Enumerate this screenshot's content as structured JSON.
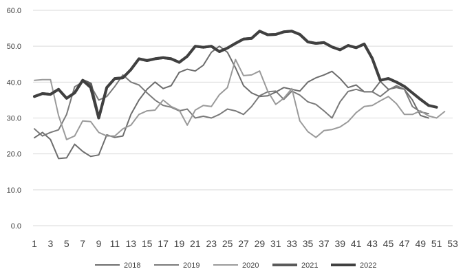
{
  "chart_data": {
    "type": "line",
    "title": "",
    "xlabel": "",
    "ylabel": "",
    "ylim": [
      0,
      60
    ],
    "y_ticks": [
      "0.0",
      "10.0",
      "20.0",
      "30.0",
      "40.0",
      "50.0",
      "60.0"
    ],
    "x_ticks": [
      "1",
      "3",
      "5",
      "7",
      "9",
      "11",
      "13",
      "15",
      "17",
      "19",
      "21",
      "23",
      "25",
      "27",
      "29",
      "31",
      "33",
      "35",
      "37",
      "39",
      "41",
      "43",
      "45",
      "47",
      "49",
      "51",
      "53"
    ],
    "xlim": [
      1,
      53
    ],
    "grid": "horizontal",
    "legend": "bottom",
    "series": [
      {
        "name": "2018",
        "color": "#6d6d6d",
        "x": [
          1,
          2,
          3,
          4,
          5,
          6,
          7,
          8,
          9,
          10,
          11,
          12,
          13,
          14,
          15,
          16,
          17,
          18,
          19,
          20,
          21,
          22,
          23,
          24,
          25,
          26,
          27,
          28,
          29,
          30,
          31,
          32,
          33,
          34,
          35,
          36,
          37,
          38,
          39,
          40,
          41,
          42,
          43,
          44,
          45,
          46,
          47,
          48,
          49,
          50
        ],
        "values": [
          24.5,
          26,
          24,
          18.7,
          18.9,
          22.7,
          20.7,
          19.3,
          19.7,
          25.3,
          24.6,
          25,
          31,
          35,
          38,
          40,
          38.2,
          39,
          42.7,
          43.6,
          43.1,
          44.7,
          48.3,
          50,
          48.3,
          44,
          39,
          37,
          36,
          36.2,
          37.2,
          38.5,
          38,
          37.5,
          40,
          41.2,
          42,
          43,
          41,
          38.5,
          39.2,
          37.3,
          37.3,
          40.2,
          38,
          38.5,
          38,
          35,
          30.7,
          30
        ]
      },
      {
        "name": "2019",
        "color": "#7a7a7a",
        "x": [
          1,
          2,
          3,
          4,
          5,
          6,
          7,
          8,
          9,
          10,
          11,
          12,
          13,
          14,
          15,
          16,
          17,
          18,
          19,
          20,
          21,
          22,
          23,
          24,
          25,
          26,
          27,
          28,
          29,
          30,
          31,
          32,
          33,
          34,
          35,
          36,
          37,
          38,
          39,
          40,
          41,
          42,
          43,
          44,
          45,
          46,
          47,
          48,
          49,
          50
        ],
        "values": [
          27,
          25,
          26,
          26.7,
          31,
          38.7,
          40,
          39,
          35,
          36,
          38.8,
          42,
          40,
          39.2,
          37,
          35,
          33.5,
          33,
          32,
          32.5,
          30,
          30.5,
          30,
          31,
          32.5,
          32,
          31,
          33.2,
          36.2,
          37.3,
          37.5,
          35.2,
          37.5,
          36.4,
          34.5,
          33.8,
          32,
          30,
          34.5,
          37.4,
          38,
          37.3,
          37.3,
          36,
          37.8,
          39,
          38,
          33.2,
          31.7,
          31.2
        ]
      },
      {
        "name": "2020",
        "color": "#9a9a9a",
        "x": [
          1,
          2,
          3,
          4,
          5,
          6,
          7,
          8,
          9,
          10,
          11,
          12,
          13,
          14,
          15,
          16,
          17,
          18,
          19,
          20,
          21,
          22,
          23,
          24,
          25,
          26,
          27,
          28,
          29,
          30,
          31,
          32,
          33,
          34,
          35,
          36,
          37,
          38,
          39,
          40,
          41,
          42,
          43,
          44,
          45,
          46,
          47,
          48,
          49,
          50,
          51,
          52
        ],
        "values": [
          40.5,
          40.7,
          40.7,
          30.7,
          24,
          25,
          29.2,
          29,
          26,
          25,
          25,
          27,
          28,
          31,
          32,
          32.2,
          35,
          33.2,
          32.2,
          28,
          32.2,
          33.5,
          33.2,
          36.5,
          38.5,
          46.3,
          41.8,
          42,
          43.1,
          37.5,
          33.8,
          35.5,
          38.2,
          29.2,
          26.2,
          24.6,
          26.5,
          26.8,
          27.5,
          29,
          31.5,
          33.2,
          33.5,
          34.8,
          36,
          34,
          31,
          31,
          32,
          30.6,
          30,
          31.8
        ]
      },
      {
        "name": "2021",
        "color": "#5a5a5a",
        "x": [
          1,
          2,
          3,
          4,
          5,
          6,
          7,
          8,
          9,
          10,
          11,
          12,
          13,
          14,
          15,
          16,
          17,
          18,
          19,
          20,
          21,
          22,
          23,
          24,
          25,
          26,
          27,
          28,
          29,
          30,
          31,
          32,
          33,
          34,
          35,
          36,
          37,
          38,
          39,
          40,
          41,
          42,
          43,
          44,
          45,
          46,
          47,
          48,
          49,
          50
        ],
        "values": [
          36,
          36.8,
          36.6,
          38,
          35.5,
          37,
          40.5,
          39.5,
          30,
          38.5,
          41,
          41.2,
          43.5,
          46.5,
          46,
          46.5,
          46.8,
          46.5,
          45.5,
          47.2,
          50,
          49.7,
          50,
          48.5,
          49.5,
          50.8,
          52,
          52.2,
          54.2,
          53.2,
          53.3,
          54,
          54.2,
          53.3,
          51.2,
          50.8,
          51,
          49.8,
          49,
          50.2,
          49.6,
          50.6,
          46.6,
          40.5,
          41,
          40,
          38.8,
          37,
          35.2,
          33.5
        ]
      },
      {
        "name": "2022",
        "color": "#404040",
        "x": [
          1,
          2,
          3,
          4,
          5,
          6,
          7,
          8,
          9,
          10,
          11,
          12,
          13,
          14,
          15,
          16,
          17,
          18,
          19,
          20,
          21,
          22,
          23,
          24,
          25,
          26,
          27,
          28,
          29,
          30,
          31,
          32,
          33,
          34,
          35,
          36,
          37,
          38,
          39,
          40,
          41,
          42,
          43,
          44,
          45,
          46,
          47,
          48,
          49,
          50,
          51
        ],
        "values": [
          36,
          36.8,
          36.6,
          38,
          35.5,
          37,
          40.5,
          38.5,
          30,
          38.5,
          41,
          41.2,
          43.5,
          46.5,
          46,
          46.5,
          46.8,
          46.5,
          45.5,
          47.2,
          50,
          49.7,
          50,
          48.5,
          49.5,
          50.8,
          52,
          52.2,
          54.2,
          53.2,
          53.3,
          54,
          54.2,
          53.3,
          51.2,
          50.8,
          51,
          49.8,
          49,
          50.2,
          49.6,
          50.6,
          46.6,
          40.5,
          41,
          40,
          38.8,
          37,
          35.2,
          33.5,
          33
        ]
      }
    ]
  }
}
